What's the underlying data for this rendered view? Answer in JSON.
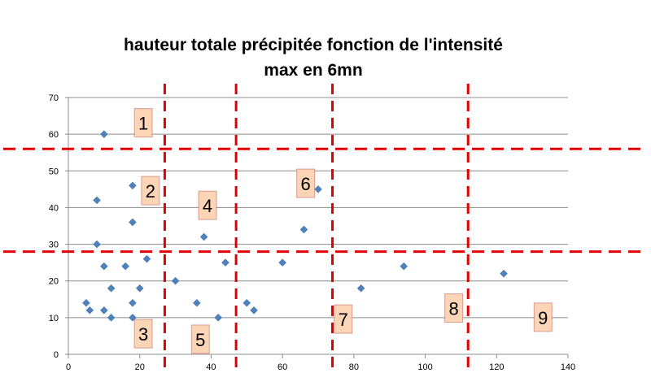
{
  "chart_data": {
    "type": "scatter",
    "title": [
      "hauteur totale précipitée fonction de l'intensité",
      "max en 6mn"
    ],
    "xlabel": "",
    "ylabel": "",
    "xlim": [
      0,
      140
    ],
    "ylim": [
      0,
      70
    ],
    "xticks": [
      0,
      20,
      40,
      60,
      80,
      100,
      120,
      140
    ],
    "yticks": [
      0,
      10,
      20,
      30,
      40,
      50,
      60,
      70
    ],
    "grid": "horizontal",
    "legend": "none",
    "marker_color": "#4f81bd",
    "divider_color": "#e00000",
    "points": [
      {
        "x": 10,
        "y": 60
      },
      {
        "x": 18,
        "y": 46
      },
      {
        "x": 8,
        "y": 42
      },
      {
        "x": 18,
        "y": 36
      },
      {
        "x": 8,
        "y": 30
      },
      {
        "x": 22,
        "y": 26
      },
      {
        "x": 10,
        "y": 24
      },
      {
        "x": 16,
        "y": 24
      },
      {
        "x": 12,
        "y": 18
      },
      {
        "x": 20,
        "y": 18
      },
      {
        "x": 5,
        "y": 14
      },
      {
        "x": 18,
        "y": 14
      },
      {
        "x": 6,
        "y": 12
      },
      {
        "x": 10,
        "y": 12
      },
      {
        "x": 12,
        "y": 10
      },
      {
        "x": 18,
        "y": 10
      },
      {
        "x": 38,
        "y": 32
      },
      {
        "x": 44,
        "y": 25
      },
      {
        "x": 30,
        "y": 20
      },
      {
        "x": 36,
        "y": 14
      },
      {
        "x": 42,
        "y": 10
      },
      {
        "x": 70,
        "y": 45
      },
      {
        "x": 66,
        "y": 34
      },
      {
        "x": 60,
        "y": 25
      },
      {
        "x": 50,
        "y": 14
      },
      {
        "x": 52,
        "y": 12
      },
      {
        "x": 82,
        "y": 18
      },
      {
        "x": 94,
        "y": 24
      },
      {
        "x": 122,
        "y": 22
      }
    ],
    "vertical_dividers": [
      27,
      47,
      74,
      112
    ],
    "horizontal_dividers": [
      56,
      28
    ],
    "zones": [
      {
        "label": "1",
        "x": 21,
        "y": 63
      },
      {
        "label": "2",
        "x": 23,
        "y": 44.5
      },
      {
        "label": "3",
        "x": 21,
        "y": 5.5
      },
      {
        "label": "4",
        "x": 39,
        "y": 40.5
      },
      {
        "label": "5",
        "x": 37,
        "y": 4
      },
      {
        "label": "6",
        "x": 66.5,
        "y": 46.5
      },
      {
        "label": "7",
        "x": 77,
        "y": 9.5
      },
      {
        "label": "8",
        "x": 108,
        "y": 12.5
      },
      {
        "label": "9",
        "x": 133,
        "y": 10
      }
    ]
  }
}
